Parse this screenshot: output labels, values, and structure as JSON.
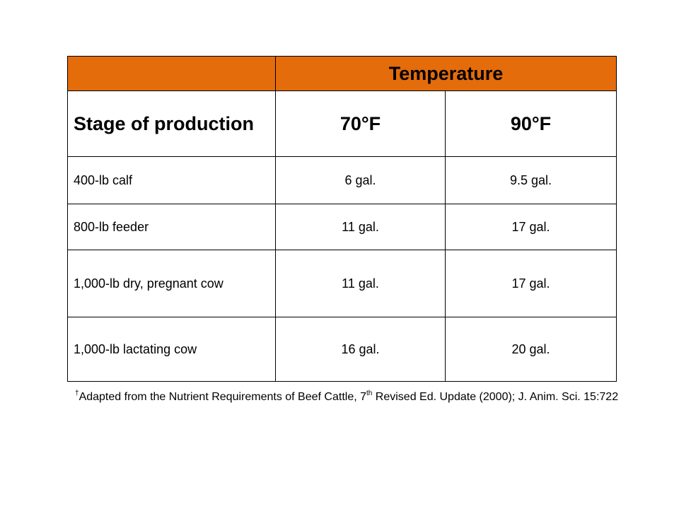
{
  "table": {
    "temperature_header": "Temperature",
    "stage_header": "Stage of production",
    "temp_cols": [
      "70°F",
      "90°F"
    ],
    "rows": [
      {
        "stage": "400-lb calf",
        "t70": "6 gal.",
        "t90": "9.5 gal."
      },
      {
        "stage": "800-lb feeder",
        "t70": "11 gal.",
        "t90": "17 gal."
      },
      {
        "stage": "1,000-lb dry, pregnant cow",
        "t70": "11 gal.",
        "t90": "17 gal."
      },
      {
        "stage": "1,000-lb lactating cow",
        "t70": "16 gal.",
        "t90": "20 gal."
      }
    ]
  },
  "footnote": {
    "dagger": "†",
    "text_before": "Adapted from the Nutrient Requirements of Beef Cattle, 7",
    "superscript": "th",
    "text_after": " Revised Ed. Update (2000); J. Anim. Sci. 15:722"
  }
}
